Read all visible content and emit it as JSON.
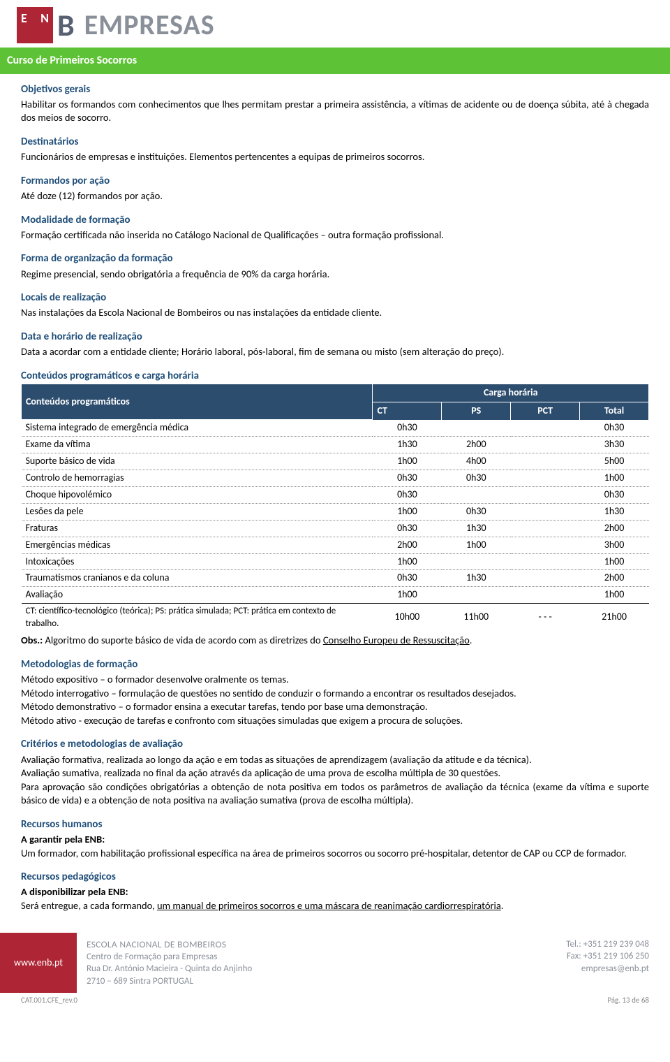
{
  "logo": {
    "brand_letter": "B",
    "brand_word": "EMPRESAS"
  },
  "green_bar": "Curso de Primeiros Socorros",
  "sec_objetivos": {
    "title": "Objetivos gerais",
    "body": "Habilitar os formandos com conhecimentos que lhes permitam prestar a primeira assistência, a vítimas de acidente ou de doença súbita, até à chegada dos meios de socorro."
  },
  "sec_destinatarios": {
    "title": "Destinatários",
    "body": "Funcionários de empresas e instituições. Elementos pertencentes a equipas de primeiros socorros."
  },
  "sec_formandos": {
    "title": "Formandos por ação",
    "body": "Até doze (12) formandos por ação."
  },
  "sec_modalidade": {
    "title": "Modalidade de formação",
    "body": "Formação certificada não inserida no Catálogo Nacional de Qualificações – outra formação profissional."
  },
  "sec_forma_org": {
    "title": "Forma de organização da formação",
    "body": "Regime presencial, sendo obrigatória a frequência de 90% da carga horária."
  },
  "sec_locais": {
    "title": "Locais de realização",
    "body": "Nas instalações da Escola Nacional de Bombeiros ou nas instalações da entidade cliente."
  },
  "sec_data": {
    "title": "Data e horário de realização",
    "body": "Data a acordar com a entidade cliente; Horário laboral, pós-laboral, fim de semana ou misto (sem alteração do preço)."
  },
  "sec_conteudos_title": "Conteúdos programáticos e carga horária",
  "table": {
    "header": {
      "col_content": "Conteúdos programáticos",
      "col_carga": "Carga horária",
      "sub_ct": "CT",
      "sub_ps": "PS",
      "sub_pct": "PCT",
      "sub_total": "Total"
    },
    "rows": [
      {
        "label": "Sistema integrado de emergência médica",
        "ct": "0h30",
        "ps": "",
        "pct": "",
        "total": "0h30"
      },
      {
        "label": "Exame da vítima",
        "ct": "1h30",
        "ps": "2h00",
        "pct": "",
        "total": "3h30"
      },
      {
        "label": "Suporte básico de vida",
        "ct": "1h00",
        "ps": "4h00",
        "pct": "",
        "total": "5h00"
      },
      {
        "label": "Controlo de hemorragias",
        "ct": "0h30",
        "ps": "0h30",
        "pct": "",
        "total": "1h00"
      },
      {
        "label": "Choque hipovolémico",
        "ct": "0h30",
        "ps": "",
        "pct": "",
        "total": "0h30"
      },
      {
        "label": "Lesões da pele",
        "ct": "1h00",
        "ps": "0h30",
        "pct": "",
        "total": "1h30"
      },
      {
        "label": "Fraturas",
        "ct": "0h30",
        "ps": "1h30",
        "pct": "",
        "total": "2h00"
      },
      {
        "label": "Emergências médicas",
        "ct": "2h00",
        "ps": "1h00",
        "pct": "",
        "total": "3h00"
      },
      {
        "label": "Intoxicações",
        "ct": "1h00",
        "ps": "",
        "pct": "",
        "total": "1h00"
      },
      {
        "label": "Traumatismos cranianos e da coluna",
        "ct": "0h30",
        "ps": "1h30",
        "pct": "",
        "total": "2h00"
      },
      {
        "label": "Avaliação",
        "ct": "1h00",
        "ps": "",
        "pct": "",
        "total": "1h00"
      }
    ],
    "footer": {
      "legend": "CT: científico-tecnológico (teórica); PS: prática simulada; PCT: prática em contexto de trabalho.",
      "ct": "10h00",
      "ps": "11h00",
      "pct": "- - -",
      "total": "21h00"
    },
    "obs_prefix": "Obs.:",
    "obs_body": " Algoritmo do suporte básico de vida de acordo com as diretrizes do ",
    "obs_link": "Conselho Europeu de Ressuscitação",
    "obs_suffix": "."
  },
  "sec_metodologias": {
    "title": "Metodologias de formação",
    "lines": [
      "Método expositivo – o formador desenvolve oralmente os temas.",
      "Método interrogativo – formulação de questões no sentido de conduzir o formando a encontrar os resultados desejados.",
      "Método demonstrativo – o formador ensina a executar tarefas, tendo por base uma demonstração.",
      "Método ativo - execução de tarefas e confronto com situações simuladas que exigem a procura de soluções."
    ]
  },
  "sec_criterios": {
    "title": "Critérios e metodologias de avaliação",
    "lines": [
      "Avaliação formativa, realizada ao longo da ação e em todas as situações de aprendizagem (avaliação da atitude e da técnica).",
      "Avaliação sumativa, realizada no final da ação através da aplicação de uma prova de escolha múltipla de 30 questões.",
      "Para aprovação são condições obrigatórias a obtenção de nota positiva em todos os parâmetros de avaliação da técnica (exame da vítima e suporte básico de vida) e a obtenção de nota positiva na avaliação sumativa (prova de escolha múltipla)."
    ]
  },
  "sec_humanos": {
    "title": "Recursos humanos",
    "subtitle": "A garantir pela ENB:",
    "body": "Um formador, com habilitação profissional específica na área de primeiros socorros ou socorro pré-hospitalar, detentor de CAP ou CCP de formador."
  },
  "sec_pedagogicos": {
    "title": "Recursos pedagógicos",
    "subtitle": "A disponibilizar pela ENB:",
    "body_prefix": "Será entregue, a cada formando, ",
    "body_underline": "um manual de primeiros socorros e uma máscara de reanimação cardiorrespiratória",
    "body_suffix": "."
  },
  "footer": {
    "site": "www.enb.pt",
    "l1": "ESCOLA NACIONAL DE BOMBEIROS",
    "l2": "Centro de Formação para Empresas",
    "l3": "Rua Dr. António Macieira - Quinta do Anjinho",
    "l4": "2710 – 689 Sintra    PORTUGAL",
    "tel": "Tel.: +351 219 239 048",
    "fax": "Fax: +351 219 106 250",
    "email": "empresas@enb.pt"
  },
  "meta": {
    "left": "CAT.001.CFE_rev.0",
    "right": "Pág.  13 de  68"
  }
}
